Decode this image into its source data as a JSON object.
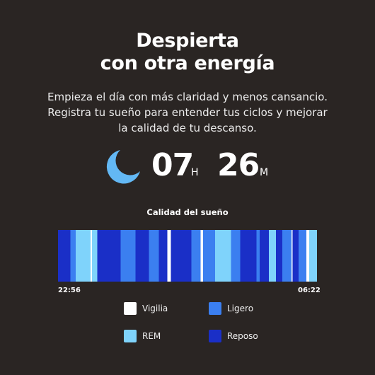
{
  "header": {
    "title_line1": "Despierta",
    "title_line2": "con otra energía"
  },
  "description": {
    "line1": "Empieza el día con más claridad y menos cansancio.",
    "line2": "Registra tu sueño para entender tus ciclos y mejorar",
    "line3": "la calidad de tu descanso."
  },
  "duration": {
    "icon": "moon-icon",
    "hours": "07",
    "hours_unit": "H",
    "minutes": "26",
    "minutes_unit": "M"
  },
  "sleep_chart": {
    "title": "Calidad del sueño",
    "start_time": "22:56",
    "end_time": "06:22",
    "colors": {
      "Vigilia": "#ffffff",
      "Ligero": "#3b7ff0",
      "REM": "#7fd3fb",
      "Reposo": "#1a2fc7"
    },
    "stage_order": [
      "Reposo",
      "Ligero",
      "REM",
      "Vigilia",
      "REM",
      "Reposo",
      "Ligero",
      "Reposo",
      "Ligero",
      "Reposo",
      "Vigilia",
      "Reposo",
      "Ligero",
      "Vigilia",
      "Ligero",
      "REM",
      "Ligero",
      "Reposo",
      "Ligero",
      "Reposo",
      "REM",
      "Reposo",
      "Ligero",
      "Vigilia",
      "Reposo",
      "Ligero",
      "Vigilia",
      "REM"
    ],
    "stage_fractions": [
      0.052,
      0.022,
      0.063,
      0.005,
      0.022,
      0.098,
      0.063,
      0.057,
      0.041,
      0.036,
      0.014,
      0.087,
      0.038,
      0.011,
      0.049,
      0.068,
      0.038,
      0.068,
      0.014,
      0.038,
      0.03,
      0.027,
      0.038,
      0.005,
      0.025,
      0.033,
      0.011,
      0.033
    ]
  },
  "legend": [
    {
      "label": "Vigilia",
      "color": "#ffffff"
    },
    {
      "label": "Ligero",
      "color": "#3b7ff0"
    },
    {
      "label": "REM",
      "color": "#7fd3fb"
    },
    {
      "label": "Reposo",
      "color": "#1a2fc7"
    }
  ]
}
